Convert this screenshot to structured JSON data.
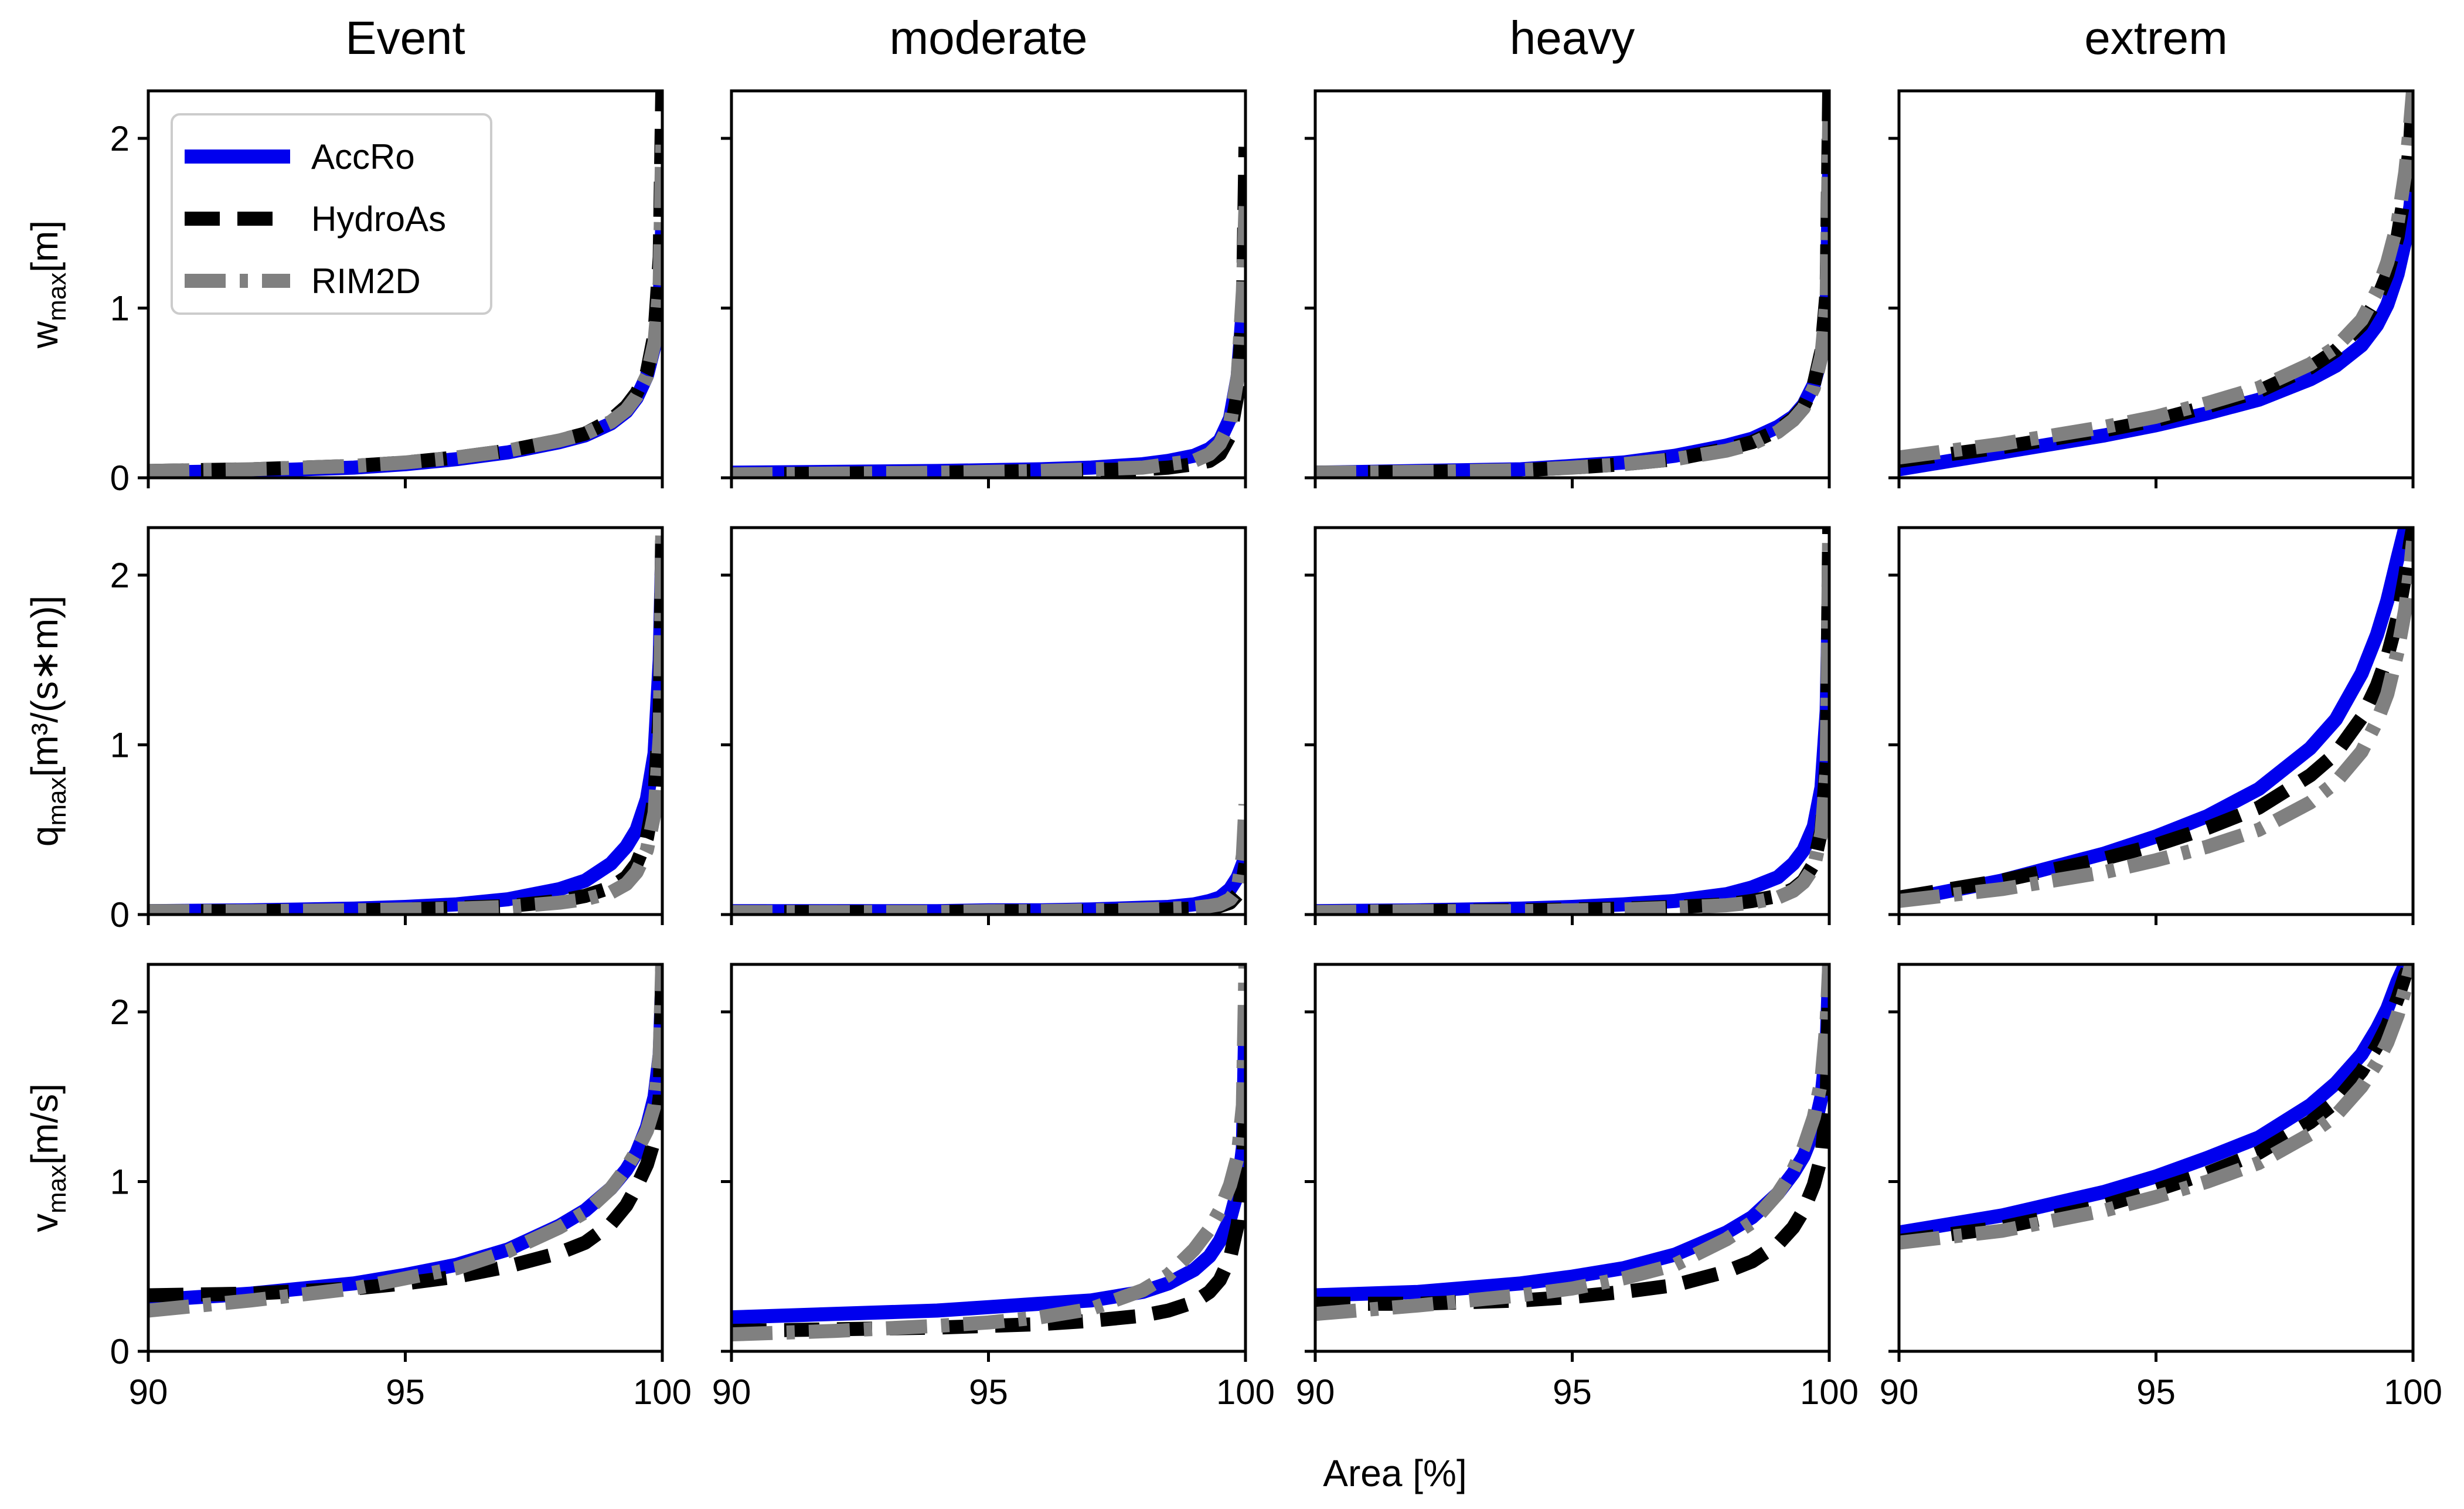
{
  "chart_data": {
    "type": "line",
    "layout": "grid 3 rows x 4 columns, shared axes",
    "column_titles": [
      "Event",
      "moderate",
      "heavy",
      "extrem"
    ],
    "row_labels": [
      {
        "main": "w",
        "sub": "max",
        "unit": "[m]"
      },
      {
        "main": "q",
        "sub": "max",
        "unit": "[m³/(s∗m)]"
      },
      {
        "main": "v",
        "sub": "max",
        "unit": "[m/s]"
      }
    ],
    "xlabel": "Area [%]",
    "xlim": [
      90,
      100
    ],
    "ylim": [
      0,
      2.28
    ],
    "xticks": [
      "90",
      "95",
      "100"
    ],
    "yticks": [
      "0",
      "1",
      "2"
    ],
    "legend": {
      "placement": "upper-left of first panel",
      "entries": [
        {
          "name": "AccRo",
          "color": "#0000ee",
          "style": "solid"
        },
        {
          "name": "HydroAs",
          "color": "#000000",
          "style": "dashed"
        },
        {
          "name": "RIM2D",
          "color": "#808080",
          "style": "dash-dot"
        }
      ]
    },
    "series_x": [
      90,
      92,
      94,
      95,
      96,
      97,
      98,
      98.5,
      99,
      99.3,
      99.5,
      99.7,
      99.85,
      99.95,
      100
    ],
    "panels": [
      {
        "row": 0,
        "col": 0,
        "series": [
          {
            "name": "AccRo",
            "values": [
              0.03,
              0.04,
              0.06,
              0.08,
              0.11,
              0.15,
              0.21,
              0.25,
              0.32,
              0.39,
              0.47,
              0.6,
              0.78,
              1.05,
              1.5
            ]
          },
          {
            "name": "HydroAs",
            "values": [
              0.04,
              0.05,
              0.07,
              0.09,
              0.12,
              0.16,
              0.22,
              0.26,
              0.34,
              0.42,
              0.5,
              0.62,
              0.85,
              1.3,
              2.28
            ]
          },
          {
            "name": "RIM2D",
            "values": [
              0.04,
              0.05,
              0.07,
              0.09,
              0.12,
              0.16,
              0.22,
              0.26,
              0.33,
              0.4,
              0.48,
              0.6,
              0.8,
              1.15,
              2.0
            ]
          }
        ]
      },
      {
        "row": 0,
        "col": 1,
        "series": [
          {
            "name": "AccRo",
            "values": [
              0.03,
              0.035,
              0.04,
              0.045,
              0.05,
              0.06,
              0.08,
              0.1,
              0.13,
              0.17,
              0.22,
              0.35,
              0.6,
              1.0,
              1.15
            ]
          },
          {
            "name": "HydroAs",
            "values": [
              0.02,
              0.025,
              0.03,
              0.035,
              0.04,
              0.045,
              0.05,
              0.06,
              0.08,
              0.1,
              0.14,
              0.25,
              0.5,
              1.0,
              1.95
            ]
          },
          {
            "name": "RIM2D",
            "values": [
              0.02,
              0.025,
              0.03,
              0.035,
              0.04,
              0.05,
              0.06,
              0.08,
              0.1,
              0.14,
              0.2,
              0.32,
              0.6,
              1.1,
              1.6
            ]
          }
        ]
      },
      {
        "row": 0,
        "col": 2,
        "series": [
          {
            "name": "AccRo",
            "values": [
              0.03,
              0.04,
              0.05,
              0.07,
              0.09,
              0.13,
              0.19,
              0.23,
              0.3,
              0.36,
              0.43,
              0.55,
              0.72,
              1.0,
              1.85
            ]
          },
          {
            "name": "HydroAs",
            "values": [
              0.03,
              0.035,
              0.045,
              0.06,
              0.08,
              0.11,
              0.17,
              0.21,
              0.28,
              0.35,
              0.42,
              0.55,
              0.75,
              1.1,
              2.28
            ]
          },
          {
            "name": "RIM2D",
            "values": [
              0.03,
              0.035,
              0.045,
              0.06,
              0.08,
              0.11,
              0.16,
              0.2,
              0.27,
              0.34,
              0.41,
              0.53,
              0.72,
              1.05,
              2.1
            ]
          }
        ]
      },
      {
        "row": 0,
        "col": 3,
        "series": [
          {
            "name": "AccRo",
            "values": [
              0.05,
              0.15,
              0.25,
              0.31,
              0.38,
              0.46,
              0.58,
              0.66,
              0.78,
              0.9,
              1.02,
              1.2,
              1.4,
              1.6,
              1.75
            ]
          },
          {
            "name": "HydroAs",
            "values": [
              0.1,
              0.18,
              0.28,
              0.34,
              0.42,
              0.51,
              0.65,
              0.75,
              0.9,
              1.05,
              1.2,
              1.42,
              1.7,
              2.0,
              2.28
            ]
          },
          {
            "name": "RIM2D",
            "values": [
              0.12,
              0.2,
              0.3,
              0.36,
              0.44,
              0.53,
              0.67,
              0.77,
              0.93,
              1.1,
              1.27,
              1.5,
              1.8,
              2.1,
              2.28
            ]
          }
        ]
      },
      {
        "row": 1,
        "col": 0,
        "series": [
          {
            "name": "AccRo",
            "values": [
              0.02,
              0.025,
              0.035,
              0.045,
              0.06,
              0.09,
              0.15,
              0.2,
              0.3,
              0.4,
              0.5,
              0.68,
              0.95,
              1.5,
              2.2
            ]
          },
          {
            "name": "HydroAs",
            "values": [
              0.02,
              0.02,
              0.025,
              0.03,
              0.04,
              0.05,
              0.08,
              0.11,
              0.16,
              0.22,
              0.3,
              0.45,
              0.7,
              1.2,
              2.28
            ]
          },
          {
            "name": "RIM2D",
            "values": [
              0.02,
              0.02,
              0.025,
              0.03,
              0.035,
              0.045,
              0.07,
              0.09,
              0.13,
              0.18,
              0.25,
              0.38,
              0.6,
              1.05,
              2.28
            ]
          }
        ]
      },
      {
        "row": 1,
        "col": 1,
        "series": [
          {
            "name": "AccRo",
            "values": [
              0.02,
              0.02,
              0.02,
              0.025,
              0.025,
              0.03,
              0.04,
              0.045,
              0.06,
              0.08,
              0.1,
              0.15,
              0.22,
              0.3,
              0.35
            ]
          },
          {
            "name": "HydroAs",
            "values": [
              0.015,
              0.015,
              0.015,
              0.02,
              0.02,
              0.02,
              0.025,
              0.03,
              0.035,
              0.04,
              0.05,
              0.07,
              0.12,
              0.2,
              0.3
            ]
          },
          {
            "name": "RIM2D",
            "values": [
              0.015,
              0.015,
              0.015,
              0.02,
              0.02,
              0.025,
              0.03,
              0.035,
              0.04,
              0.05,
              0.06,
              0.09,
              0.15,
              0.35,
              0.65
            ]
          }
        ]
      },
      {
        "row": 1,
        "col": 2,
        "series": [
          {
            "name": "AccRo",
            "values": [
              0.02,
              0.025,
              0.035,
              0.045,
              0.06,
              0.08,
              0.12,
              0.16,
              0.22,
              0.3,
              0.38,
              0.52,
              0.75,
              1.2,
              2.0
            ]
          },
          {
            "name": "HydroAs",
            "values": [
              0.015,
              0.02,
              0.025,
              0.03,
              0.035,
              0.045,
              0.06,
              0.08,
              0.11,
              0.15,
              0.2,
              0.3,
              0.5,
              0.9,
              2.28
            ]
          },
          {
            "name": "RIM2D",
            "values": [
              0.015,
              0.02,
              0.02,
              0.025,
              0.03,
              0.04,
              0.055,
              0.07,
              0.1,
              0.14,
              0.19,
              0.28,
              0.48,
              0.85,
              2.28
            ]
          }
        ]
      },
      {
        "row": 1,
        "col": 3,
        "series": [
          {
            "name": "AccRo",
            "values": [
              0.08,
              0.2,
              0.36,
              0.46,
              0.58,
              0.74,
              0.98,
              1.15,
              1.42,
              1.65,
              1.85,
              2.1,
              2.28,
              2.28,
              2.28
            ]
          },
          {
            "name": "HydroAs",
            "values": [
              0.1,
              0.2,
              0.33,
              0.41,
              0.51,
              0.63,
              0.82,
              0.95,
              1.16,
              1.35,
              1.52,
              1.75,
              2.0,
              2.2,
              2.28
            ]
          },
          {
            "name": "RIM2D",
            "values": [
              0.08,
              0.15,
              0.25,
              0.32,
              0.4,
              0.5,
              0.66,
              0.78,
              0.96,
              1.14,
              1.3,
              1.55,
              1.8,
              2.05,
              2.2
            ]
          }
        ]
      },
      {
        "row": 2,
        "col": 0,
        "series": [
          {
            "name": "AccRo",
            "values": [
              0.3,
              0.34,
              0.4,
              0.45,
              0.51,
              0.6,
              0.74,
              0.83,
              0.96,
              1.07,
              1.17,
              1.32,
              1.5,
              1.75,
              2.2
            ]
          },
          {
            "name": "HydroAs",
            "values": [
              0.33,
              0.34,
              0.37,
              0.4,
              0.44,
              0.5,
              0.58,
              0.64,
              0.75,
              0.86,
              0.97,
              1.1,
              1.25,
              1.5,
              2.28
            ]
          },
          {
            "name": "RIM2D",
            "values": [
              0.24,
              0.3,
              0.37,
              0.43,
              0.49,
              0.59,
              0.73,
              0.82,
              0.96,
              1.08,
              1.18,
              1.3,
              1.45,
              1.75,
              2.28
            ]
          }
        ]
      },
      {
        "row": 2,
        "col": 1,
        "series": [
          {
            "name": "AccRo",
            "values": [
              0.2,
              0.22,
              0.24,
              0.26,
              0.28,
              0.3,
              0.35,
              0.4,
              0.48,
              0.56,
              0.65,
              0.78,
              0.95,
              1.2,
              2.0
            ]
          },
          {
            "name": "HydroAs",
            "values": [
              0.12,
              0.13,
              0.14,
              0.15,
              0.16,
              0.18,
              0.21,
              0.24,
              0.29,
              0.35,
              0.42,
              0.55,
              0.75,
              1.05,
              1.5
            ]
          },
          {
            "name": "RIM2D",
            "values": [
              0.1,
              0.12,
              0.15,
              0.17,
              0.2,
              0.25,
              0.36,
              0.45,
              0.6,
              0.72,
              0.83,
              0.98,
              1.15,
              1.45,
              2.28
            ]
          }
        ]
      },
      {
        "row": 2,
        "col": 2,
        "series": [
          {
            "name": "AccRo",
            "values": [
              0.33,
              0.35,
              0.4,
              0.44,
              0.49,
              0.57,
              0.7,
              0.79,
              0.93,
              1.05,
              1.15,
              1.3,
              1.5,
              1.8,
              2.28
            ]
          },
          {
            "name": "HydroAs",
            "values": [
              0.28,
              0.28,
              0.3,
              0.32,
              0.35,
              0.39,
              0.47,
              0.53,
              0.63,
              0.73,
              0.83,
              0.98,
              1.15,
              1.45,
              2.28
            ]
          },
          {
            "name": "RIM2D",
            "values": [
              0.22,
              0.27,
              0.33,
              0.37,
              0.43,
              0.51,
              0.66,
              0.76,
              0.93,
              1.07,
              1.2,
              1.38,
              1.6,
              1.95,
              2.28
            ]
          }
        ]
      },
      {
        "row": 2,
        "col": 3,
        "series": [
          {
            "name": "AccRo",
            "values": [
              0.7,
              0.8,
              0.94,
              1.03,
              1.14,
              1.26,
              1.45,
              1.58,
              1.75,
              1.9,
              2.02,
              2.18,
              2.28,
              2.28,
              2.28
            ]
          },
          {
            "name": "HydroAs",
            "values": [
              0.65,
              0.73,
              0.86,
              0.95,
              1.05,
              1.17,
              1.35,
              1.47,
              1.65,
              1.8,
              1.92,
              2.08,
              2.22,
              2.28,
              2.28
            ]
          },
          {
            "name": "RIM2D",
            "values": [
              0.64,
              0.71,
              0.83,
              0.91,
              1.0,
              1.11,
              1.28,
              1.39,
              1.56,
              1.7,
              1.82,
              1.98,
              2.14,
              2.26,
              2.28
            ]
          }
        ]
      }
    ]
  }
}
